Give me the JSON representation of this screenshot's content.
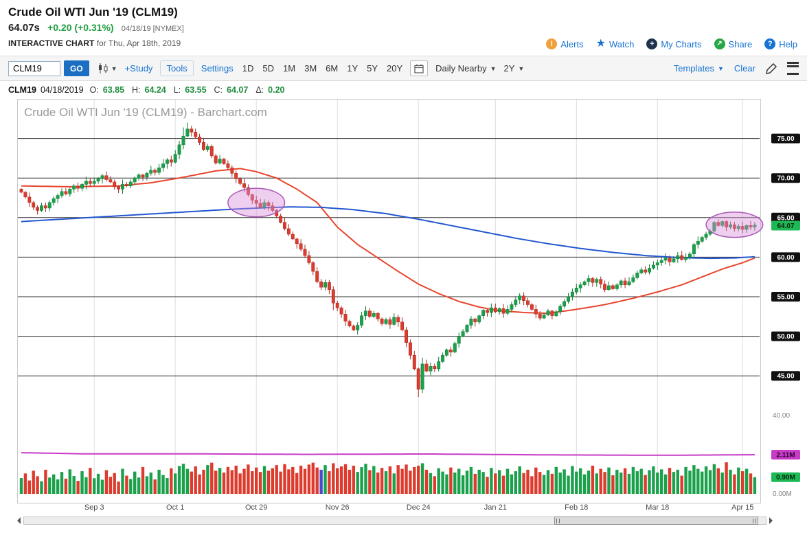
{
  "header": {
    "title": "Crude Oil WTI Jun '19 (CLM19)",
    "price": "64.07s",
    "change": "+0.20 (+0.31%)",
    "date_exchange": "04/18/19 [NYMEX]",
    "chart_label": "INTERACTIVE CHART",
    "chart_sub": "for Thu, Apr 18th, 2019",
    "links": [
      {
        "label": "Alerts",
        "icon": "alert-icon"
      },
      {
        "label": "Watch",
        "icon": "star-icon"
      },
      {
        "label": "My Charts",
        "icon": "my-charts-icon"
      },
      {
        "label": "Share",
        "icon": "share-icon"
      },
      {
        "label": "Help",
        "icon": "help-icon"
      }
    ]
  },
  "toolbar": {
    "symbol_value": "CLM19",
    "go_label": "GO",
    "study_label": "+Study",
    "tools_label": "Tools",
    "settings_label": "Settings",
    "frequencies": [
      "1D",
      "5D",
      "1M",
      "3M",
      "6M",
      "1Y",
      "5Y",
      "20Y"
    ],
    "period_dropdown": "Daily Nearby",
    "range_dropdown": "2Y",
    "templates_label": "Templates",
    "clear_label": "Clear"
  },
  "quote_bar": {
    "symbol": "CLM19",
    "date": "04/18/2019",
    "fields": [
      {
        "label": "O:",
        "value": "63.85"
      },
      {
        "label": "H:",
        "value": "64.24"
      },
      {
        "label": "L:",
        "value": "63.55"
      },
      {
        "label": "C:",
        "value": "64.07"
      },
      {
        "label": "Δ:",
        "value": "0.20"
      }
    ]
  },
  "chart_data": {
    "type": "candlestick+volume",
    "symbol": "CLM19",
    "watermark": "Crude Oil WTI Jun '19 (CLM19) - Barchart.com",
    "y_axis": {
      "gridlines": [
        75,
        70,
        65,
        60,
        55,
        50,
        45
      ],
      "plain_labels": [
        40
      ],
      "last_price": 64.07
    },
    "x_labels": [
      {
        "label": "Sep 3",
        "i": 18
      },
      {
        "label": "Oct 1",
        "i": 38
      },
      {
        "label": "Oct 29",
        "i": 58
      },
      {
        "label": "Nov 26",
        "i": 78
      },
      {
        "label": "Dec 24",
        "i": 98
      },
      {
        "label": "Jan 21",
        "i": 117
      },
      {
        "label": "Feb 18",
        "i": 137
      },
      {
        "label": "Mar 18",
        "i": 157
      },
      {
        "label": "Apr 15",
        "i": 178
      }
    ],
    "closes": [
      68.2,
      67.6,
      66.9,
      66.3,
      65.9,
      66.5,
      66.2,
      66.9,
      67.4,
      67.8,
      68.3,
      68.0,
      68.6,
      69.0,
      68.7,
      69.2,
      69.6,
      69.3,
      69.6,
      69.9,
      70.3,
      69.8,
      69.5,
      68.9,
      68.6,
      69.2,
      69.0,
      69.5,
      70.0,
      70.4,
      70.1,
      70.6,
      71.0,
      70.7,
      71.3,
      71.8,
      72.3,
      72.0,
      73.0,
      74.2,
      75.3,
      76.2,
      75.8,
      75.2,
      74.5,
      73.6,
      74.0,
      72.8,
      71.9,
      72.4,
      71.8,
      71.3,
      70.6,
      69.9,
      69.3,
      68.8,
      67.9,
      67.2,
      66.8,
      66.3,
      66.9,
      66.5,
      65.9,
      65.2,
      64.4,
      63.6,
      62.9,
      62.3,
      61.7,
      61.0,
      60.2,
      59.3,
      58.2,
      56.9,
      56.2,
      56.8,
      55.9,
      54.2,
      53.6,
      52.8,
      51.9,
      51.3,
      50.8,
      51.4,
      52.6,
      53.2,
      52.5,
      52.9,
      52.2,
      51.6,
      52.1,
      51.5,
      52.4,
      51.8,
      50.8,
      49.2,
      47.6,
      45.9,
      43.3,
      46.5,
      45.6,
      46.2,
      45.9,
      46.8,
      47.6,
      48.3,
      48.0,
      49.1,
      50.0,
      50.6,
      51.4,
      52.2,
      51.8,
      52.6,
      53.3,
      53.0,
      53.6,
      53.1,
      53.5,
      52.9,
      53.4,
      54.0,
      54.6,
      55.1,
      54.5,
      54.0,
      53.4,
      52.8,
      52.3,
      52.7,
      53.2,
      52.6,
      53.1,
      53.8,
      54.4,
      55.0,
      55.6,
      56.1,
      56.5,
      56.9,
      57.3,
      56.8,
      57.2,
      56.6,
      55.9,
      56.4,
      56.0,
      56.5,
      57.0,
      56.5,
      56.9,
      57.4,
      58.0,
      58.4,
      58.1,
      58.6,
      59.0,
      59.3,
      59.6,
      59.9,
      59.4,
      59.8,
      60.2,
      59.7,
      60.0,
      60.4,
      61.6,
      62.0,
      62.5,
      62.9,
      63.3,
      64.4,
      64.0,
      64.5,
      63.8,
      64.1,
      63.6,
      63.9,
      63.5,
      64.0,
      63.8,
      64.07
    ],
    "volumes": [
      0.85,
      1.1,
      0.72,
      1.25,
      0.95,
      0.68,
      1.3,
      0.88,
      1.05,
      0.78,
      1.18,
      0.82,
      1.32,
      0.96,
      0.7,
      1.22,
      0.9,
      1.4,
      0.84,
      1.08,
      0.76,
      1.28,
      0.92,
      1.12,
      0.66,
      1.35,
      0.98,
      0.8,
      1.2,
      0.88,
      1.45,
      0.95,
      1.15,
      0.78,
      1.3,
      1.02,
      0.85,
      1.38,
      1.1,
      1.5,
      1.62,
      1.35,
      1.2,
      1.48,
      1.05,
      1.3,
      1.55,
      1.68,
      1.25,
      1.4,
      1.15,
      1.45,
      1.28,
      1.52,
      1.1,
      1.35,
      1.58,
      1.22,
      1.42,
      1.18,
      1.5,
      1.25,
      1.38,
      1.55,
      1.2,
      1.6,
      1.32,
      1.45,
      1.12,
      1.52,
      1.35,
      1.58,
      1.68,
      1.42,
      1.3,
      1.55,
      1.22,
      1.65,
      1.38,
      1.48,
      1.6,
      1.3,
      1.52,
      1.18,
      1.44,
      1.62,
      1.28,
      1.5,
      1.15,
      1.4,
      1.22,
      1.48,
      1.1,
      1.55,
      1.35,
      1.58,
      1.25,
      1.45,
      1.52,
      1.65,
      1.3,
      1.12,
      0.95,
      1.38,
      1.2,
      1.05,
      1.42,
      1.15,
      1.35,
      1.0,
      1.25,
      1.45,
      1.08,
      1.3,
      1.18,
      0.92,
      1.4,
      1.1,
      1.28,
      0.98,
      1.35,
      1.05,
      1.22,
      1.48,
      1.12,
      1.3,
      0.95,
      1.42,
      1.18,
      1.02,
      1.28,
      1.08,
      1.45,
      1.15,
      1.32,
      0.98,
      1.5,
      1.2,
      1.38,
      1.05,
      1.25,
      1.52,
      1.1,
      1.35,
      1.18,
      1.42,
      1.0,
      1.3,
      1.15,
      1.38,
      1.08,
      1.45,
      1.22,
      1.35,
      1.02,
      1.28,
      1.48,
      1.15,
      1.32,
      1.05,
      1.4,
      1.18,
      1.3,
      0.98,
      1.45,
      1.25,
      1.55,
      1.35,
      1.2,
      1.48,
      1.28,
      1.6,
      1.38,
      1.15,
      1.7,
      1.3,
      1.05,
      1.42,
      1.22,
      1.35,
      1.1,
      0.9
    ],
    "volume_highlight": {
      "index": 74,
      "color": "#4a4ad0"
    },
    "wick_overrides": {
      "40": {
        "high": 76.4
      },
      "41": {
        "high": 77.0
      },
      "77": {
        "low": 53.3
      },
      "98": {
        "low": 42.3
      },
      "99": {
        "high": 47.3
      }
    },
    "ma_red": [
      [
        0,
        69.0
      ],
      [
        12,
        68.9
      ],
      [
        24,
        69.0
      ],
      [
        32,
        69.4
      ],
      [
        40,
        70.1
      ],
      [
        48,
        70.9
      ],
      [
        54,
        71.2
      ],
      [
        58,
        70.8
      ],
      [
        63,
        70.0
      ],
      [
        68,
        68.6
      ],
      [
        73,
        66.9
      ],
      [
        78,
        63.8
      ],
      [
        83,
        61.6
      ],
      [
        88,
        59.9
      ],
      [
        93,
        58.2
      ],
      [
        98,
        56.6
      ],
      [
        103,
        55.4
      ],
      [
        108,
        54.4
      ],
      [
        113,
        53.7
      ],
      [
        117,
        53.3
      ],
      [
        124,
        53.0
      ],
      [
        130,
        52.9
      ],
      [
        137,
        53.4
      ],
      [
        144,
        54.0
      ],
      [
        151,
        54.8
      ],
      [
        157,
        55.6
      ],
      [
        163,
        56.5
      ],
      [
        168,
        57.5
      ],
      [
        173,
        58.5
      ],
      [
        178,
        59.3
      ],
      [
        181,
        59.9
      ]
    ],
    "ma_blue": [
      [
        0,
        64.5
      ],
      [
        10,
        64.8
      ],
      [
        20,
        65.1
      ],
      [
        30,
        65.4
      ],
      [
        40,
        65.7
      ],
      [
        50,
        66.0
      ],
      [
        58,
        66.2
      ],
      [
        66,
        66.35
      ],
      [
        74,
        66.3
      ],
      [
        82,
        66.0
      ],
      [
        90,
        65.5
      ],
      [
        98,
        64.8
      ],
      [
        106,
        64.0
      ],
      [
        114,
        63.2
      ],
      [
        122,
        62.4
      ],
      [
        130,
        61.7
      ],
      [
        138,
        61.1
      ],
      [
        146,
        60.6
      ],
      [
        154,
        60.2
      ],
      [
        162,
        59.95
      ],
      [
        170,
        59.85
      ],
      [
        176,
        59.9
      ],
      [
        181,
        60.05
      ]
    ],
    "volume_ma": [
      [
        0,
        2.22
      ],
      [
        15,
        2.16
      ],
      [
        40,
        2.16
      ],
      [
        70,
        2.13
      ],
      [
        100,
        2.15
      ],
      [
        130,
        2.1
      ],
      [
        160,
        2.08
      ],
      [
        181,
        2.11
      ]
    ],
    "volume_ma_last": 2.11,
    "volume_last": 0.9,
    "volume_badges": {
      "ma": "2.11M",
      "last": "0.90M",
      "zero": "0.00M"
    },
    "annotations": [
      {
        "type": "ellipse",
        "i": 58,
        "price": 66.9,
        "i_radius": 7,
        "price_radius": 1.8
      },
      {
        "type": "ellipse",
        "i": 176,
        "price": 64.1,
        "i_radius": 7,
        "price_radius": 1.6
      }
    ],
    "colors": {
      "up": "#1ba14c",
      "up_stroke": "#0d7a33",
      "down": "#dd3b2d",
      "down_stroke": "#aa2a1f",
      "ma_red": "#e8452c",
      "ma_blue": "#2257d0",
      "volume_ma": "#c73bc7",
      "annotation_fill": "rgba(216,140,220,0.42)",
      "annotation_stroke": "#a957b4",
      "badge_bg": "#101010",
      "badge_last_bg": "#1db954"
    }
  }
}
